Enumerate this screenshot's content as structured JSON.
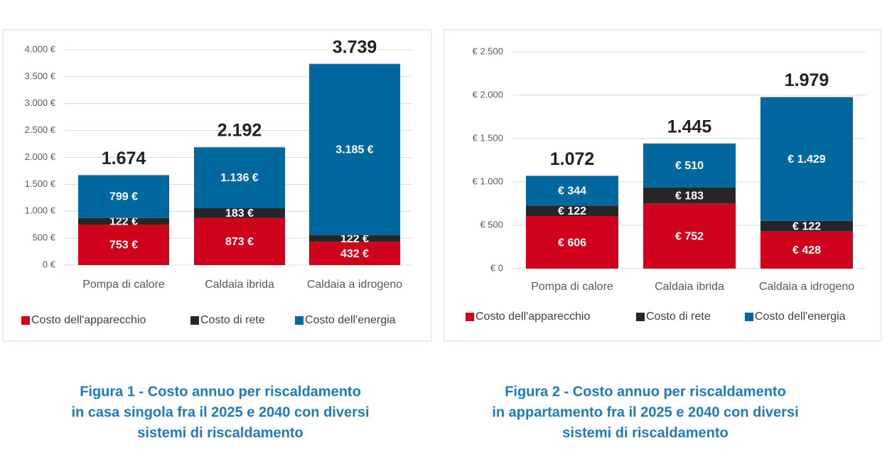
{
  "chart_data": [
    {
      "type": "stacked_bar",
      "categories": [
        "Pompa di calore",
        "Caldaia ibrida",
        "Caldaia a idrogeno"
      ],
      "series": [
        {
          "name": "Costo dell'apparecchio",
          "color": "#d0021b",
          "values": [
            753,
            873,
            432
          ],
          "value_labels": [
            "753 €",
            "873 €",
            "432 €"
          ]
        },
        {
          "name": "Costo di rete",
          "color": "#262626",
          "values": [
            122,
            183,
            122
          ],
          "value_labels": [
            "122 €",
            "183 €",
            "122 €"
          ]
        },
        {
          "name": "Costo dell'energia",
          "color": "#00689e",
          "values": [
            799,
            1136,
            3185
          ],
          "value_labels": [
            "799 €",
            "1.136 €",
            "3.185 €"
          ]
        }
      ],
      "totals": {
        "values": [
          1674,
          2192,
          3739
        ],
        "value_labels": [
          "1.674",
          "2.192",
          "3.739"
        ]
      },
      "ylim": [
        0,
        4000
      ],
      "yticks": [
        {
          "value": 0,
          "label": "0 €"
        },
        {
          "value": 500,
          "label": "500 €"
        },
        {
          "value": 1000,
          "label": "1.000 €"
        },
        {
          "value": 1500,
          "label": "1.500 €"
        },
        {
          "value": 2000,
          "label": "2.000 €"
        },
        {
          "value": 2500,
          "label": "2.500 €"
        },
        {
          "value": 3000,
          "label": "3.000 €"
        },
        {
          "value": 3500,
          "label": "3.500 €"
        },
        {
          "value": 4000,
          "label": "4.000 €"
        }
      ],
      "grid": true,
      "legend": "bottom",
      "caption": [
        "Figura 1 - Costo annuo per riscaldamento",
        "in casa singola fra il 2025 e 2040 con diversi",
        "sistemi di riscaldamento"
      ]
    },
    {
      "type": "stacked_bar",
      "categories": [
        "Pompa di calore",
        "Caldaia ibrida",
        "Caldaia a idrogeno"
      ],
      "series": [
        {
          "name": "Costo dell'apparecchio",
          "color": "#d0021b",
          "values": [
            606,
            752,
            428
          ],
          "value_labels": [
            "€ 606",
            "€ 752",
            "€ 428"
          ]
        },
        {
          "name": "Costo di rete",
          "color": "#262626",
          "values": [
            122,
            183,
            122
          ],
          "value_labels": [
            "€ 122",
            "€ 183",
            "€ 122"
          ]
        },
        {
          "name": "Costo dell'energia",
          "color": "#00689e",
          "values": [
            344,
            510,
            1429
          ],
          "value_labels": [
            "€ 344",
            "€ 510",
            "€ 1.429"
          ]
        }
      ],
      "totals": {
        "values": [
          1072,
          1445,
          1979
        ],
        "value_labels": [
          "1.072",
          "1.445",
          "1.979"
        ]
      },
      "ylim": [
        0,
        2500
      ],
      "yticks": [
        {
          "value": 0,
          "label": "€ 0"
        },
        {
          "value": 500,
          "label": "€ 500"
        },
        {
          "value": 1000,
          "label": "€ 1.000"
        },
        {
          "value": 1500,
          "label": "€ 1.500"
        },
        {
          "value": 2000,
          "label": "€ 2.000"
        },
        {
          "value": 2500,
          "label": "€ 2.500"
        }
      ],
      "grid": true,
      "legend": "bottom",
      "caption": [
        "Figura 2 - Costo annuo per riscaldamento",
        "in appartamento fra il 2025 e 2040 con diversi",
        "sistemi di riscaldamento"
      ]
    }
  ]
}
